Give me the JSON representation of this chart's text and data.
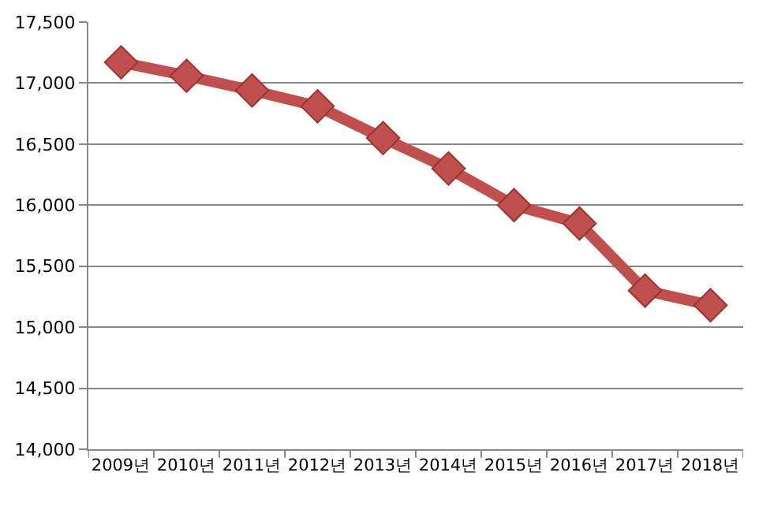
{
  "chart_data": {
    "type": "line",
    "categories": [
      "2009년",
      "2010년",
      "2011년",
      "2012년",
      "2013년",
      "2014년",
      "2015년",
      "2016년",
      "2017년",
      "2018년"
    ],
    "series": [
      {
        "color": "#c0504d",
        "values": [
          17170,
          17060,
          16940,
          16810,
          16550,
          16300,
          16000,
          15850,
          15300,
          15180
        ]
      }
    ],
    "ylim": [
      14000,
      17500
    ],
    "yticks": [
      {
        "value": 14000,
        "label": "14,000"
      },
      {
        "value": 14500,
        "label": "14,500"
      },
      {
        "value": 15000,
        "label": "15,000"
      },
      {
        "value": 15500,
        "label": "15,500"
      },
      {
        "value": 16000,
        "label": "16,000"
      },
      {
        "value": 16500,
        "label": "16,500"
      },
      {
        "value": 17000,
        "label": "17,000"
      },
      {
        "value": 17500,
        "label": "17,500"
      }
    ],
    "grid": "y",
    "marker": "diamond",
    "line_style": "solid",
    "legend": false
  }
}
